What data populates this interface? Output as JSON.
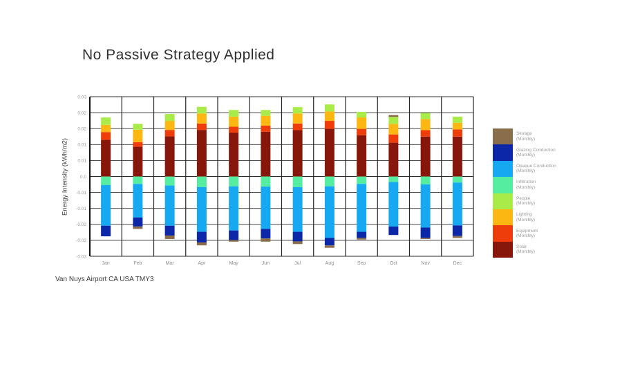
{
  "title": "No Passive Strategy Applied",
  "caption": "Van Nuys Airport CA USA TMY3",
  "y_axis": {
    "title": "Energy Intensity (kWh/m2)",
    "max": 0.03,
    "min": -0.03,
    "tick_step": 0.006,
    "tick_labels": [
      "0.03",
      "0.02",
      "0.02",
      "0.01",
      "0.01",
      "0.0",
      "-0.01",
      "-0.01",
      "-0.02",
      "-0.02",
      "-0.03"
    ]
  },
  "legend": {
    "items": [
      {
        "label": "Storage",
        "period": "(Monthly)",
        "color": "#8A6D4B"
      },
      {
        "label": "Glazing Conduction",
        "period": "(Monthly)",
        "color": "#0C28A8"
      },
      {
        "label": "Opaque Conduction",
        "period": "(Monthly)",
        "color": "#16A8F0"
      },
      {
        "label": "Infiltration",
        "period": "(Monthly)",
        "color": "#55EDA0"
      },
      {
        "label": "People",
        "period": "(Monthly)",
        "color": "#A9EC49"
      },
      {
        "label": "Lighting",
        "period": "(Monthly)",
        "color": "#FCB712"
      },
      {
        "label": "Equipment",
        "period": "(Monthly)",
        "color": "#EE3D0B"
      },
      {
        "label": "Solar",
        "period": "(Monthly)",
        "color": "#87170A"
      }
    ]
  },
  "chart_data": {
    "type": "bar",
    "stacked": true,
    "title": "No Passive Strategy Applied",
    "xlabel": "",
    "ylabel": "Energy Intensity (kWh/m2)",
    "ylim": [
      -0.03,
      0.03
    ],
    "grid": true,
    "legend_position": "right",
    "categories": [
      "Jan",
      "Feb",
      "Mar",
      "Apr",
      "May",
      "Jun",
      "Jul",
      "Aug",
      "Sep",
      "Oct",
      "Nov",
      "Dec"
    ],
    "positive_stack_order_bottom_up": [
      "Solar (Monthly)",
      "Equipment (Monthly)",
      "Lighting (Monthly)",
      "People (Monthly)",
      "Storage (Monthly)"
    ],
    "negative_stack_order_top_down": [
      "Infiltration (Monthly)",
      "Opaque Conduction (Monthly)",
      "Glazing Conduction (Monthly)",
      "Storage (Monthly)"
    ],
    "series": [
      {
        "name": "Solar (Monthly)",
        "color": "#87170A",
        "values": [
          0.0138,
          0.0112,
          0.0151,
          0.0175,
          0.0165,
          0.0168,
          0.0174,
          0.0179,
          0.0155,
          0.0127,
          0.015,
          0.015
        ]
      },
      {
        "name": "Equipment (Monthly)",
        "color": "#EE3D0B",
        "values": [
          0.0029,
          0.0017,
          0.0024,
          0.0024,
          0.0022,
          0.0023,
          0.0025,
          0.003,
          0.0024,
          0.0031,
          0.0024,
          0.0027
        ]
      },
      {
        "name": "Lighting (Monthly)",
        "color": "#FCB712",
        "values": [
          0.0027,
          0.0047,
          0.0034,
          0.0038,
          0.0038,
          0.0037,
          0.0038,
          0.0036,
          0.0043,
          0.004,
          0.0042,
          0.0025
        ]
      },
      {
        "name": "People (Monthly)",
        "color": "#A9EC49",
        "values": [
          0.0028,
          0.0022,
          0.0026,
          0.0025,
          0.0025,
          0.0022,
          0.0024,
          0.0026,
          0.0021,
          0.0026,
          0.0023,
          0.0023
        ]
      },
      {
        "name": "Infiltration (Monthly)",
        "color": "#55EDA0",
        "values": [
          -0.0032,
          -0.0028,
          -0.0034,
          -0.004,
          -0.0037,
          -0.0038,
          -0.004,
          -0.0037,
          -0.0028,
          -0.0021,
          -0.003,
          -0.0023
        ]
      },
      {
        "name": "Opaque Conduction (Monthly)",
        "color": "#16A8F0",
        "values": [
          -0.0153,
          -0.0126,
          -0.0151,
          -0.0168,
          -0.0166,
          -0.0159,
          -0.0168,
          -0.0194,
          -0.018,
          -0.0167,
          -0.0162,
          -0.0161
        ]
      },
      {
        "name": "Glazing Conduction (Monthly)",
        "color": "#0C28A8",
        "values": [
          -0.004,
          -0.0034,
          -0.0037,
          -0.004,
          -0.0036,
          -0.0036,
          -0.0036,
          -0.0028,
          -0.0023,
          -0.0032,
          -0.0039,
          -0.004
        ]
      },
      {
        "name": "Storage (Monthly)",
        "color": "#8A6D4B",
        "values": [
          0.0,
          -0.0009,
          -0.0013,
          -0.0011,
          -0.0006,
          -0.0012,
          -0.001,
          -0.0009,
          -0.0006,
          0.0007,
          -0.0004,
          -0.0007
        ]
      }
    ]
  }
}
